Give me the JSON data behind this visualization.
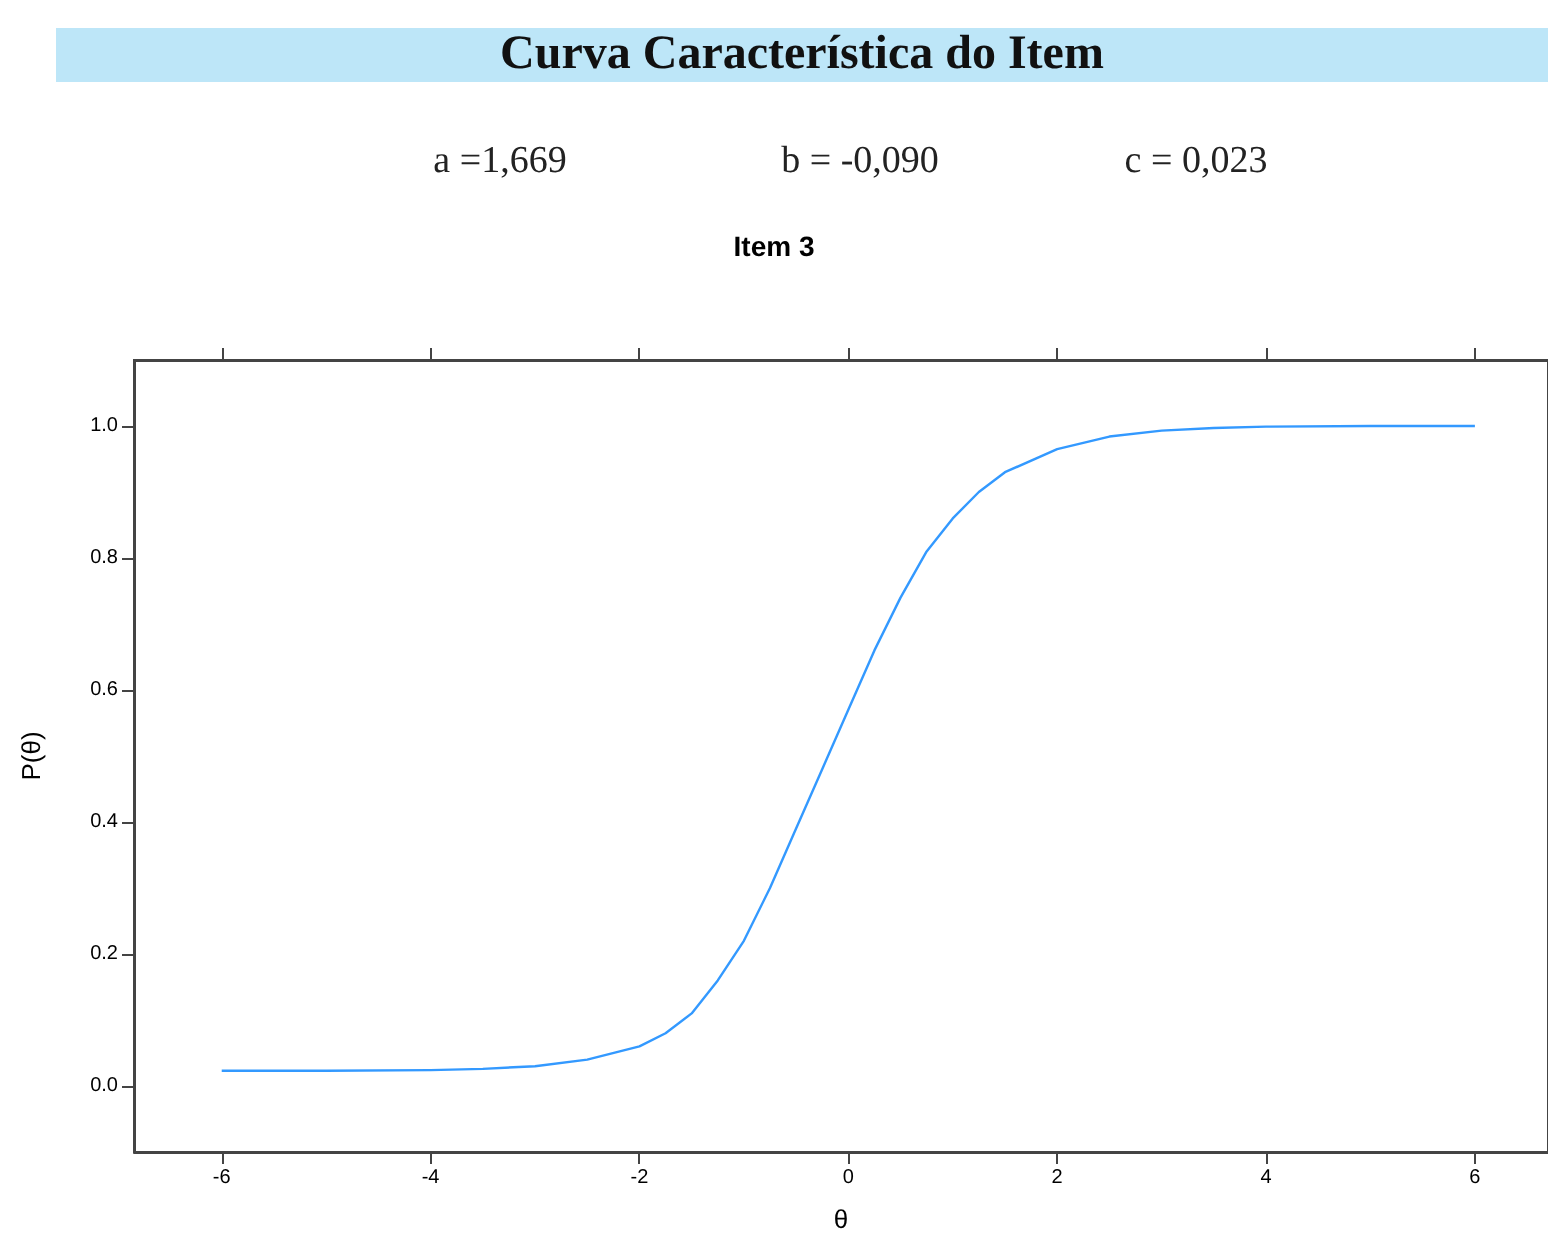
{
  "chart_data": {
    "type": "line",
    "title": "Curva Característica do Item",
    "subtitle": "Item 3",
    "annotations": [
      "a =1,669",
      "b = -0,090",
      "c = 0,023"
    ],
    "xlabel": "θ",
    "ylabel": "P(θ)",
    "x": [
      -6,
      -5,
      -4,
      -3.5,
      -3,
      -2.5,
      -2,
      -1.75,
      -1.5,
      -1.25,
      -1,
      -0.75,
      -0.5,
      -0.25,
      0,
      0.25,
      0.5,
      0.75,
      1,
      1.25,
      1.5,
      2,
      2.5,
      3,
      3.5,
      4,
      5,
      6
    ],
    "series": [
      {
        "color": "#3399ff",
        "values": [
          0.023,
          0.023,
          0.024,
          0.026,
          0.03,
          0.04,
          0.06,
          0.08,
          0.11,
          0.16,
          0.22,
          0.3,
          0.39,
          0.48,
          0.57,
          0.66,
          0.74,
          0.81,
          0.86,
          0.9,
          0.93,
          0.965,
          0.984,
          0.993,
          0.997,
          0.999,
          1.0,
          1.0
        ]
      }
    ],
    "xlim": [
      -6.84,
      6.7
    ],
    "xticks": [
      -6,
      -4,
      -2,
      0,
      2,
      4,
      6
    ],
    "ylim": [
      -0.1,
      1.1
    ],
    "yticks": [
      {
        "value": 0,
        "label": "0.0"
      },
      {
        "value": 0.2,
        "label": "0.2"
      },
      {
        "value": 0.4,
        "label": "0.4"
      },
      {
        "value": 0.6,
        "label": "0.6"
      },
      {
        "value": 0.8,
        "label": "0.8"
      },
      {
        "value": 1,
        "label": "1.0"
      }
    ],
    "grid": false,
    "marker": "none",
    "line_style": "solid"
  }
}
